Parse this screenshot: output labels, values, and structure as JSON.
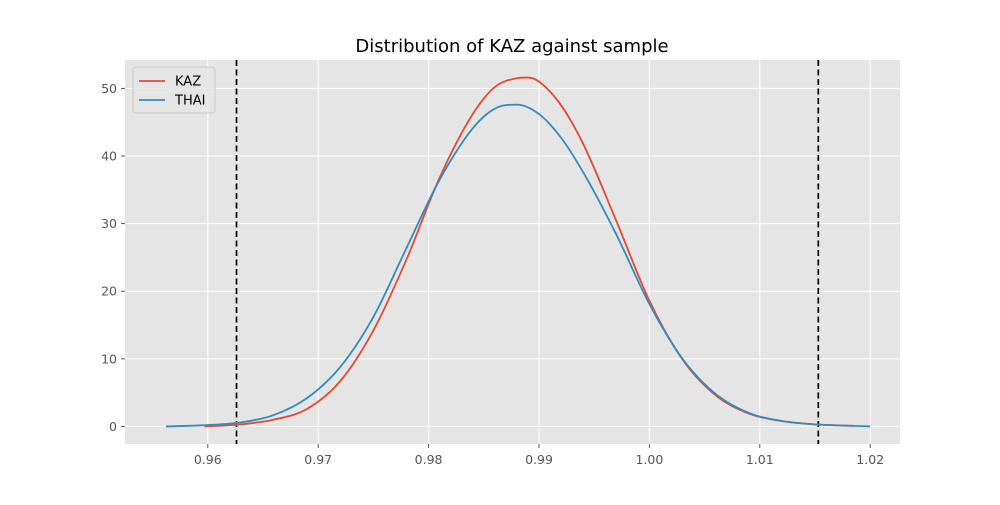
{
  "chart_data": {
    "type": "line",
    "title": "Distribution of KAZ against sample",
    "xlabel": "",
    "ylabel": "",
    "xlim": [
      0.9525,
      1.0227
    ],
    "ylim": [
      -2.6,
      54.2
    ],
    "xticks": [
      0.96,
      0.97,
      0.98,
      0.99,
      1.0,
      1.01,
      1.02
    ],
    "xtick_labels": [
      "0.96",
      "0.97",
      "0.98",
      "0.99",
      "1.00",
      "1.01",
      "1.02"
    ],
    "yticks": [
      0,
      10,
      20,
      30,
      40,
      50
    ],
    "ytick_labels": [
      "0",
      "10",
      "20",
      "30",
      "40",
      "50"
    ],
    "grid": true,
    "legend_position": "top-left",
    "background_color": "#e5e5e5",
    "vlines": [
      0.9626,
      1.0153
    ],
    "vline_color": "#000000",
    "series": [
      {
        "name": "KAZ",
        "color": "#e24a33",
        "x_range": [
          0.9597,
          1.0185
        ],
        "x": [
          0.9597,
          0.963,
          0.966,
          0.969,
          0.972,
          0.975,
          0.978,
          0.981,
          0.984,
          0.986,
          0.988,
          0.989,
          0.99,
          0.992,
          0.994,
          0.997,
          1.0,
          1.003,
          1.006,
          1.009,
          1.012,
          1.015,
          1.0185
        ],
        "y": [
          0.0,
          0.3,
          1.0,
          2.6,
          6.7,
          14.2,
          24.7,
          36.8,
          46.2,
          50.2,
          51.5,
          51.6,
          51.0,
          47.5,
          41.8,
          30.4,
          18.6,
          9.9,
          4.6,
          1.9,
          0.8,
          0.3,
          0.1
        ]
      },
      {
        "name": "THAI",
        "color": "#348abd",
        "x_range": [
          0.9562,
          1.02
        ],
        "x": [
          0.9562,
          0.96,
          0.963,
          0.966,
          0.969,
          0.972,
          0.975,
          0.978,
          0.981,
          0.984,
          0.986,
          0.988,
          0.99,
          0.992,
          0.994,
          0.997,
          1.0,
          1.003,
          1.006,
          1.009,
          1.012,
          1.015,
          1.02
        ],
        "y": [
          0.0,
          0.2,
          0.6,
          1.7,
          4.2,
          8.8,
          16.2,
          26.4,
          36.5,
          44.1,
          47.0,
          47.6,
          46.2,
          42.7,
          37.6,
          28.4,
          18.1,
          10.0,
          4.8,
          2.0,
          0.8,
          0.3,
          0.0
        ]
      }
    ]
  }
}
